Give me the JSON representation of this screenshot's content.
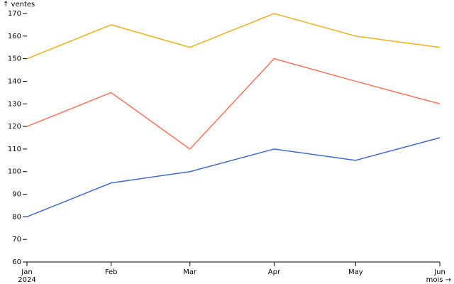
{
  "chart_data": {
    "type": "line",
    "y_label": "↑ ventes",
    "x_label": "mois →",
    "x": [
      "2024-01",
      "2024-02",
      "2024-03",
      "2024-04",
      "2024-05",
      "2024-06"
    ],
    "series": [
      {
        "color": "#efb118",
        "values": [
          150,
          165,
          155,
          170,
          160,
          155
        ]
      },
      {
        "color": "#ff725c",
        "values": [
          120,
          135,
          110,
          150,
          140,
          130
        ]
      },
      {
        "color": "#4269d0",
        "values": [
          80,
          95,
          100,
          110,
          105,
          115
        ]
      }
    ],
    "xticks": [
      {
        "value": "2024-01",
        "label": "Jan",
        "sublabel": "2024"
      },
      {
        "value": "2024-02",
        "label": "Feb"
      },
      {
        "value": "2024-03",
        "label": "Mar"
      },
      {
        "value": "2024-04",
        "label": "Apr"
      },
      {
        "value": "2024-05",
        "label": "May"
      },
      {
        "value": "2024-06",
        "label": "Jun"
      }
    ],
    "ylim": [
      60,
      170
    ],
    "yticks": [
      60,
      70,
      80,
      90,
      100,
      110,
      120,
      130,
      140,
      150,
      160,
      170
    ]
  }
}
